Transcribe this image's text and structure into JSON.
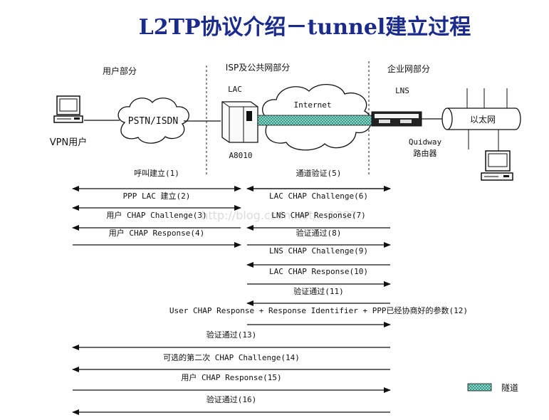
{
  "title": "L2TP协议介绍－tunnel建立过程",
  "sections": {
    "user": "用户部分",
    "isp": "ISP及公共网部分",
    "enterprise": "企业网部分"
  },
  "nodes": {
    "vpn_user": "VPN用户",
    "pstn": "PSTN/ISDN",
    "lac": "LAC",
    "a8010": "A8010",
    "internet": "Internet",
    "lns": "LNS",
    "quidway": "Quidway",
    "router": "路由器",
    "ethernet": "以太网"
  },
  "legend": {
    "tunnel": "隧道",
    "color": "#3a9a8a"
  },
  "watermark": "http://blog.csdn.net/…1327",
  "messages": [
    {
      "label": "呼叫建立(1)",
      "dir": "both",
      "from": "user",
      "to": "lac"
    },
    {
      "label": "通道验证(5)",
      "dir": "both",
      "from": "lac",
      "to": "lns"
    },
    {
      "label": "PPP LAC 建立(2)",
      "dir": "both",
      "from": "user",
      "to": "lac"
    },
    {
      "label": "LAC CHAP Challenge(6)",
      "dir": "right",
      "from": "lac",
      "to": "lns"
    },
    {
      "label": "用户 CHAP Challenge(3)",
      "dir": "left",
      "from": "user",
      "to": "lac"
    },
    {
      "label": "LNS CHAP Response(7)",
      "dir": "left",
      "from": "lac",
      "to": "lns"
    },
    {
      "label": "用户 CHAP Response(4)",
      "dir": "right",
      "from": "user",
      "to": "lac"
    },
    {
      "label": "验证通过(8)",
      "dir": "right",
      "from": "lac",
      "to": "lns"
    },
    {
      "label": "LNS CHAP Challenge(9)",
      "dir": "left",
      "from": "lac",
      "to": "lns"
    },
    {
      "label": "LAC CHAP Response(10)",
      "dir": "right",
      "from": "lac",
      "to": "lns"
    },
    {
      "label": "验证通过(11)",
      "dir": "left",
      "from": "lac",
      "to": "lns"
    },
    {
      "label": "User CHAP Response + Response Identifier + PPP已经协商好的参数(12)",
      "dir": "right",
      "from": "lac",
      "to": "lns"
    },
    {
      "label": "验证通过(13)",
      "dir": "left",
      "from": "user",
      "to": "lns"
    },
    {
      "label": "可选的第二次 CHAP Challenge(14)",
      "dir": "left",
      "from": "user",
      "to": "lns"
    },
    {
      "label": "用户 CHAP Response(15)",
      "dir": "right",
      "from": "user",
      "to": "lns"
    },
    {
      "label": "验证通过(16)",
      "dir": "left",
      "from": "user",
      "to": "lns"
    }
  ]
}
